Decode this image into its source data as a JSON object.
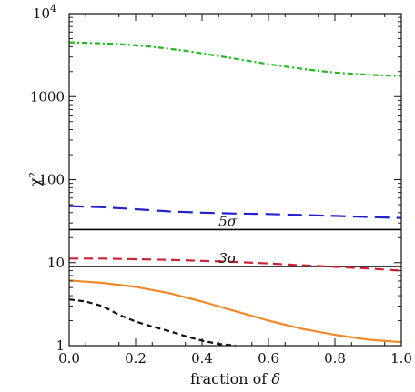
{
  "chart_data": {
    "type": "line",
    "xlabel": "fraction of δ",
    "ylabel": "χ²",
    "xlim": [
      0,
      1
    ],
    "ylim": [
      1,
      10000
    ],
    "y_scale": "log",
    "x_ticks": [
      {
        "value": 0.0,
        "label": "0.0"
      },
      {
        "value": 0.2,
        "label": "0.2"
      },
      {
        "value": 0.4,
        "label": "0.4"
      },
      {
        "value": 0.6,
        "label": "0.6"
      },
      {
        "value": 0.8,
        "label": "0.8"
      },
      {
        "value": 1.0,
        "label": "1.0"
      }
    ],
    "y_ticks": [
      {
        "value": 1,
        "label": "1"
      },
      {
        "value": 10,
        "label": "10"
      },
      {
        "value": 100,
        "label": "100"
      },
      {
        "value": 1000,
        "label": "1000"
      },
      {
        "value": 10000,
        "label": "10",
        "sup": "4"
      }
    ],
    "reference_lines": [
      {
        "id": "five-sigma",
        "label": "5σ",
        "y": 25,
        "label_x": 0.45,
        "color": "#000000"
      },
      {
        "id": "three-sigma",
        "label": "3σ",
        "y": 9,
        "label_x": 0.45,
        "color": "#000000"
      }
    ],
    "series": [
      {
        "id": "green",
        "color": "#22bb22",
        "dash": "dashdot",
        "x": [
          0,
          0.05,
          0.1,
          0.15,
          0.2,
          0.25,
          0.3,
          0.35,
          0.4,
          0.45,
          0.5,
          0.55,
          0.6,
          0.65,
          0.7,
          0.75,
          0.8,
          0.85,
          0.9,
          0.95,
          1.0
        ],
        "y": [
          4500,
          4450,
          4380,
          4290,
          4150,
          3980,
          3780,
          3560,
          3320,
          3080,
          2860,
          2650,
          2460,
          2300,
          2160,
          2040,
          1950,
          1880,
          1830,
          1800,
          1780
        ]
      },
      {
        "id": "blue",
        "color": "#2222cc",
        "dash": "longdash",
        "x": [
          0,
          0.1,
          0.2,
          0.3,
          0.4,
          0.5,
          0.6,
          0.7,
          0.8,
          0.9,
          1.0
        ],
        "y": [
          48,
          46.5,
          44,
          41.5,
          40,
          39,
          38.5,
          37.5,
          36.5,
          35.5,
          34.5
        ]
      },
      {
        "id": "red",
        "color": "#cc2233",
        "dash": "dash",
        "x": [
          0,
          0.1,
          0.2,
          0.3,
          0.4,
          0.5,
          0.6,
          0.7,
          0.8,
          0.9,
          1.0
        ],
        "y": [
          11.2,
          11.2,
          11.0,
          10.8,
          10.5,
          10.2,
          9.8,
          9.3,
          8.9,
          8.5,
          8.0
        ]
      },
      {
        "id": "orange",
        "color": "#f0882a",
        "dash": "solid",
        "x": [
          0,
          0.05,
          0.1,
          0.2,
          0.3,
          0.4,
          0.5,
          0.6,
          0.7,
          0.8,
          0.9,
          1.0
        ],
        "y": [
          6.1,
          5.9,
          5.7,
          5.1,
          4.3,
          3.4,
          2.6,
          2.0,
          1.6,
          1.35,
          1.18,
          1.1
        ]
      },
      {
        "id": "black",
        "color": "#111111",
        "dash": "shortdash",
        "x": [
          0,
          0.05,
          0.1,
          0.15,
          0.2,
          0.25,
          0.3,
          0.35,
          0.4,
          0.45,
          0.5
        ],
        "y": [
          3.6,
          3.4,
          3.0,
          2.35,
          1.95,
          1.7,
          1.5,
          1.3,
          1.15,
          1.05,
          1.0
        ]
      }
    ]
  }
}
